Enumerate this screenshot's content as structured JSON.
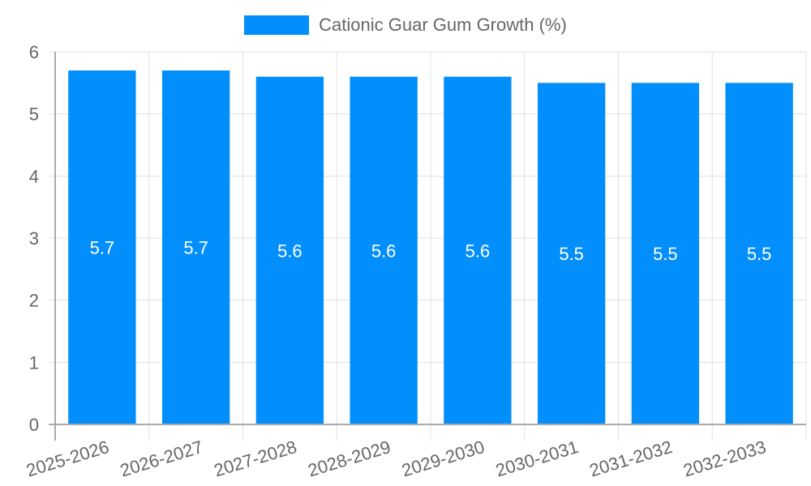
{
  "chart_data": {
    "type": "bar",
    "title": "",
    "xlabel": "",
    "ylabel": "",
    "categories": [
      "2025-2026",
      "2026-2027",
      "2027-2028",
      "2028-2029",
      "2029-2030",
      "2030-2031",
      "2031-2032",
      "2032-2033"
    ],
    "series": [
      {
        "name": "Cationic Guar Gum Growth (%)",
        "values": [
          5.7,
          5.7,
          5.6,
          5.6,
          5.6,
          5.5,
          5.5,
          5.5
        ],
        "color": "#038ffb"
      }
    ],
    "ylim": [
      0,
      6
    ],
    "yticks": [
      0,
      1,
      2,
      3,
      4,
      5,
      6
    ],
    "grid": true,
    "legend_position": "top",
    "data_labels": true
  },
  "legend": {
    "label": "Cationic Guar Gum Growth (%)",
    "color": "#038ffb"
  }
}
